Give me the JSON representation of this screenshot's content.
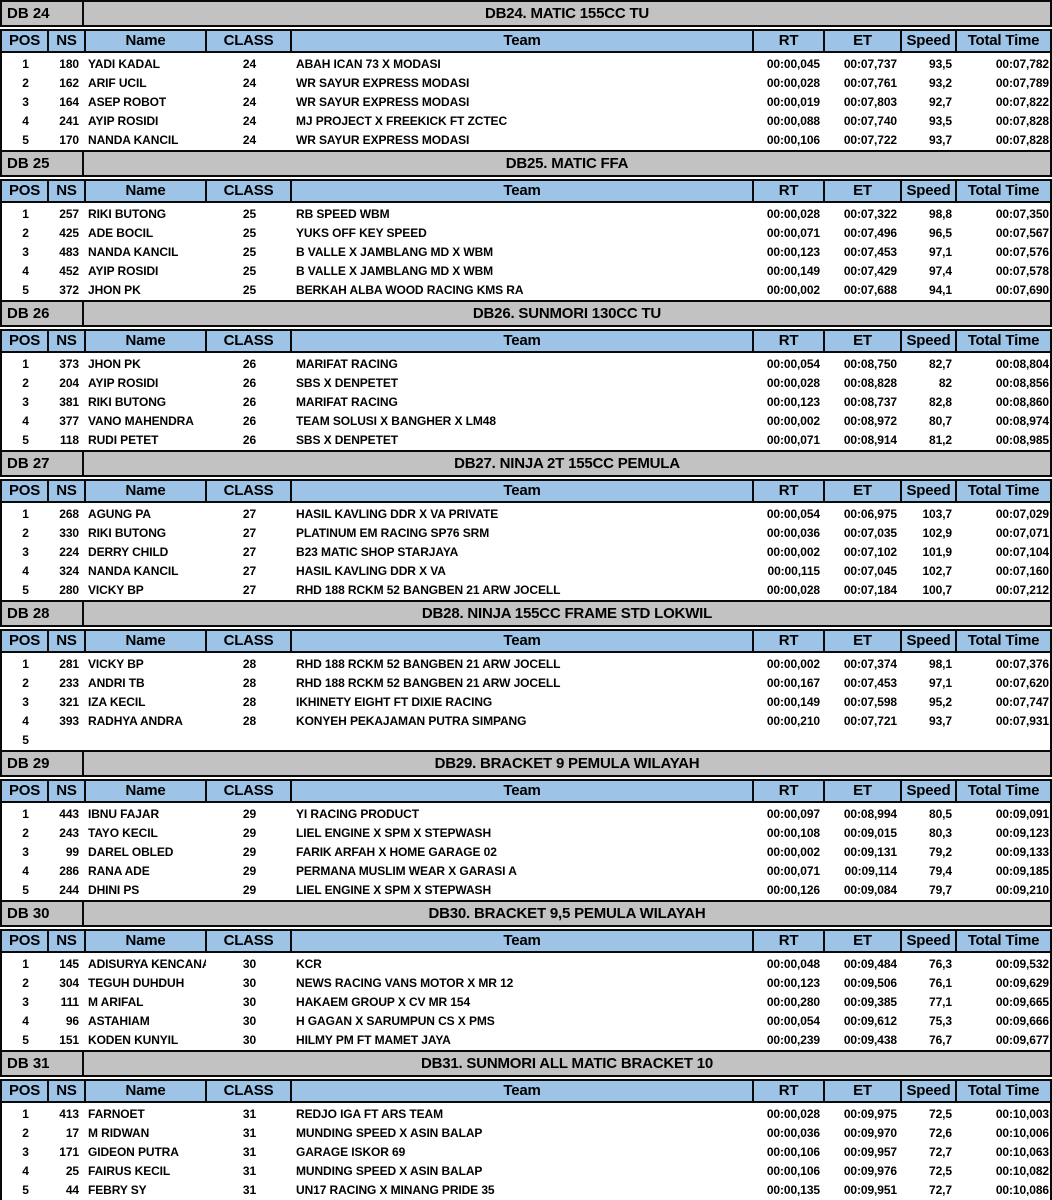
{
  "colors": {
    "title_bg": "#C2C2C2",
    "header_bg": "#9DC3E6",
    "border": "#0A0A0A",
    "row_bg": "#FFFFFF",
    "text": "#000000"
  },
  "columns": [
    "POS",
    "NS",
    "Name",
    "CLASS",
    "Team",
    "RT",
    "ET",
    "Speed",
    "Total Time"
  ],
  "sections": [
    {
      "code": "DB 24",
      "title": "DB24. MATIC 155CC TU",
      "rows": [
        {
          "pos": "1",
          "ns": "180",
          "name": "YADI KADAL",
          "class": "24",
          "team": "ABAH ICAN 73 X MODASI",
          "rt": "00:00,045",
          "et": "00:07,737",
          "speed": "93,5",
          "total_time": "00:07,782"
        },
        {
          "pos": "2",
          "ns": "162",
          "name": "ARIF UCIL",
          "class": "24",
          "team": "WR SAYUR EXPRESS MODASI",
          "rt": "00:00,028",
          "et": "00:07,761",
          "speed": "93,2",
          "total_time": "00:07,789"
        },
        {
          "pos": "3",
          "ns": "164",
          "name": "ASEP ROBOT",
          "class": "24",
          "team": "WR SAYUR EXPRESS MODASI",
          "rt": "00:00,019",
          "et": "00:07,803",
          "speed": "92,7",
          "total_time": "00:07,822"
        },
        {
          "pos": "4",
          "ns": "241",
          "name": "AYIP ROSIDI",
          "class": "24",
          "team": "MJ PROJECT X FREEKICK FT ZCTEC",
          "rt": "00:00,088",
          "et": "00:07,740",
          "speed": "93,5",
          "total_time": "00:07,828"
        },
        {
          "pos": "5",
          "ns": "170",
          "name": "NANDA KANCIL",
          "class": "24",
          "team": "WR SAYUR EXPRESS MODASI",
          "rt": "00:00,106",
          "et": "00:07,722",
          "speed": "93,7",
          "total_time": "00:07,828"
        }
      ]
    },
    {
      "code": "DB 25",
      "title": "DB25. MATIC FFA",
      "rows": [
        {
          "pos": "1",
          "ns": "257",
          "name": "RIKI BUTONG",
          "class": "25",
          "team": "RB SPEED WBM",
          "rt": "00:00,028",
          "et": "00:07,322",
          "speed": "98,8",
          "total_time": "00:07,350"
        },
        {
          "pos": "2",
          "ns": "425",
          "name": "ADE BOCIL",
          "class": "25",
          "team": "YUKS OFF KEY SPEED",
          "rt": "00:00,071",
          "et": "00:07,496",
          "speed": "96,5",
          "total_time": "00:07,567"
        },
        {
          "pos": "3",
          "ns": "483",
          "name": "NANDA KANCIL",
          "class": "25",
          "team": "B VALLE X JAMBLANG MD X WBM",
          "rt": "00:00,123",
          "et": "00:07,453",
          "speed": "97,1",
          "total_time": "00:07,576"
        },
        {
          "pos": "4",
          "ns": "452",
          "name": "AYIP ROSIDI",
          "class": "25",
          "team": "B VALLE X JAMBLANG MD X WBM",
          "rt": "00:00,149",
          "et": "00:07,429",
          "speed": "97,4",
          "total_time": "00:07,578"
        },
        {
          "pos": "5",
          "ns": "372",
          "name": "JHON PK",
          "class": "25",
          "team": "BERKAH ALBA WOOD RACING KMS RA",
          "rt": "00:00,002",
          "et": "00:07,688",
          "speed": "94,1",
          "total_time": "00:07,690"
        }
      ]
    },
    {
      "code": "DB 26",
      "title": "DB26. SUNMORI 130CC TU",
      "rows": [
        {
          "pos": "1",
          "ns": "373",
          "name": "JHON PK",
          "class": "26",
          "team": "MARIFAT RACING",
          "rt": "00:00,054",
          "et": "00:08,750",
          "speed": "82,7",
          "total_time": "00:08,804"
        },
        {
          "pos": "2",
          "ns": "204",
          "name": "AYIP ROSIDI",
          "class": "26",
          "team": "SBS X DENPETET",
          "rt": "00:00,028",
          "et": "00:08,828",
          "speed": "82",
          "total_time": "00:08,856"
        },
        {
          "pos": "3",
          "ns": "381",
          "name": "RIKI BUTONG",
          "class": "26",
          "team": "MARIFAT RACING",
          "rt": "00:00,123",
          "et": "00:08,737",
          "speed": "82,8",
          "total_time": "00:08,860"
        },
        {
          "pos": "4",
          "ns": "377",
          "name": "VANO MAHENDRA",
          "class": "26",
          "team": "TEAM SOLUSI X BANGHER X LM48",
          "rt": "00:00,002",
          "et": "00:08,972",
          "speed": "80,7",
          "total_time": "00:08,974"
        },
        {
          "pos": "5",
          "ns": "118",
          "name": "RUDI PETET",
          "class": "26",
          "team": "SBS X DENPETET",
          "rt": "00:00,071",
          "et": "00:08,914",
          "speed": "81,2",
          "total_time": "00:08,985"
        }
      ]
    },
    {
      "code": "DB 27",
      "title": "DB27. NINJA 2T 155CC PEMULA",
      "rows": [
        {
          "pos": "1",
          "ns": "268",
          "name": "AGUNG PA",
          "class": "27",
          "team": "HASIL KAVLING DDR X VA PRIVATE",
          "rt": "00:00,054",
          "et": "00:06,975",
          "speed": "103,7",
          "total_time": "00:07,029"
        },
        {
          "pos": "2",
          "ns": "330",
          "name": "RIKI BUTONG",
          "class": "27",
          "team": "PLATINUM EM RACING SP76 SRM",
          "rt": "00:00,036",
          "et": "00:07,035",
          "speed": "102,9",
          "total_time": "00:07,071"
        },
        {
          "pos": "3",
          "ns": "224",
          "name": "DERRY CHILD",
          "class": "27",
          "team": "B23 MATIC SHOP STARJAYA",
          "rt": "00:00,002",
          "et": "00:07,102",
          "speed": "101,9",
          "total_time": "00:07,104"
        },
        {
          "pos": "4",
          "ns": "324",
          "name": "NANDA KANCIL",
          "class": "27",
          "team": "HASIL KAVLING DDR X VA",
          "rt": "00:00,115",
          "et": "00:07,045",
          "speed": "102,7",
          "total_time": "00:07,160"
        },
        {
          "pos": "5",
          "ns": "280",
          "name": "VICKY BP",
          "class": "27",
          "team": "RHD 188 RCKM 52 BANGBEN 21 ARW JOCELL",
          "rt": "00:00,028",
          "et": "00:07,184",
          "speed": "100,7",
          "total_time": "00:07,212"
        }
      ]
    },
    {
      "code": "DB 28",
      "title": "DB28. NINJA 155CC FRAME STD LOKWIL",
      "rows": [
        {
          "pos": "1",
          "ns": "281",
          "name": "VICKY BP",
          "class": "28",
          "team": "RHD 188 RCKM 52 BANGBEN 21 ARW JOCELL",
          "rt": "00:00,002",
          "et": "00:07,374",
          "speed": "98,1",
          "total_time": "00:07,376"
        },
        {
          "pos": "2",
          "ns": "233",
          "name": "ANDRI TB",
          "class": "28",
          "team": "RHD 188 RCKM 52 BANGBEN 21 ARW JOCELL",
          "rt": "00:00,167",
          "et": "00:07,453",
          "speed": "97,1",
          "total_time": "00:07,620"
        },
        {
          "pos": "3",
          "ns": "321",
          "name": "IZA KECIL",
          "class": "28",
          "team": "IKHINETY EIGHT FT DIXIE RACING",
          "rt": "00:00,149",
          "et": "00:07,598",
          "speed": "95,2",
          "total_time": "00:07,747"
        },
        {
          "pos": "4",
          "ns": "393",
          "name": "RADHYA ANDRA",
          "class": "28",
          "team": "KONYEH PEKAJAMAN PUTRA SIMPANG",
          "rt": "00:00,210",
          "et": "00:07,721",
          "speed": "93,7",
          "total_time": "00:07,931"
        },
        {
          "pos": "5",
          "ns": "",
          "name": "",
          "class": "",
          "team": "",
          "rt": "",
          "et": "",
          "speed": "",
          "total_time": ""
        }
      ]
    },
    {
      "code": "DB 29",
      "title": "DB29. BRACKET 9 PEMULA WILAYAH",
      "rows": [
        {
          "pos": "1",
          "ns": "443",
          "name": "IBNU FAJAR",
          "class": "29",
          "team": "YI RACING PRODUCT",
          "rt": "00:00,097",
          "et": "00:08,994",
          "speed": "80,5",
          "total_time": "00:09,091"
        },
        {
          "pos": "2",
          "ns": "243",
          "name": "TAYO KECIL",
          "class": "29",
          "team": "LIEL ENGINE X SPM X STEPWASH",
          "rt": "00:00,108",
          "et": "00:09,015",
          "speed": "80,3",
          "total_time": "00:09,123"
        },
        {
          "pos": "3",
          "ns": "99",
          "name": "DAREL OBLED",
          "class": "29",
          "team": "FARIK ARFAH X HOME GARAGE 02",
          "rt": "00:00,002",
          "et": "00:09,131",
          "speed": "79,2",
          "total_time": "00:09,133"
        },
        {
          "pos": "4",
          "ns": "286",
          "name": "RANA ADE",
          "class": "29",
          "team": "PERMANA MUSLIM WEAR X GARASI A",
          "rt": "00:00,071",
          "et": "00:09,114",
          "speed": "79,4",
          "total_time": "00:09,185"
        },
        {
          "pos": "5",
          "ns": "244",
          "name": "DHINI PS",
          "class": "29",
          "team": "LIEL ENGINE X SPM X STEPWASH",
          "rt": "00:00,126",
          "et": "00:09,084",
          "speed": "79,7",
          "total_time": "00:09,210"
        }
      ]
    },
    {
      "code": "DB 30",
      "title": "DB30. BRACKET 9,5 PEMULA WILAYAH",
      "rows": [
        {
          "pos": "1",
          "ns": "145",
          "name": "ADISURYA KENCANA",
          "class": "30",
          "team": "KCR",
          "rt": "00:00,048",
          "et": "00:09,484",
          "speed": "76,3",
          "total_time": "00:09,532"
        },
        {
          "pos": "2",
          "ns": "304",
          "name": "TEGUH DUHDUH",
          "class": "30",
          "team": "NEWS RACING VANS MOTOR X MR 12",
          "rt": "00:00,123",
          "et": "00:09,506",
          "speed": "76,1",
          "total_time": "00:09,629"
        },
        {
          "pos": "3",
          "ns": "111",
          "name": "M ARIFAL",
          "class": "30",
          "team": "HAKAEM GROUP X CV MR 154",
          "rt": "00:00,280",
          "et": "00:09,385",
          "speed": "77,1",
          "total_time": "00:09,665"
        },
        {
          "pos": "4",
          "ns": "96",
          "name": "ASTAHIAM",
          "class": "30",
          "team": "H GAGAN X SARUMPUN CS X PMS",
          "rt": "00:00,054",
          "et": "00:09,612",
          "speed": "75,3",
          "total_time": "00:09,666"
        },
        {
          "pos": "5",
          "ns": "151",
          "name": "KODEN KUNYIL",
          "class": "30",
          "team": "HILMY PM FT MAMET JAYA",
          "rt": "00:00,239",
          "et": "00:09,438",
          "speed": "76,7",
          "total_time": "00:09,677"
        }
      ]
    },
    {
      "code": "DB 31",
      "title": "DB31. SUNMORI ALL MATIC BRACKET 10",
      "rows": [
        {
          "pos": "1",
          "ns": "413",
          "name": "FARNOET",
          "class": "31",
          "team": "REDJO IGA FT ARS TEAM",
          "rt": "00:00,028",
          "et": "00:09,975",
          "speed": "72,5",
          "total_time": "00:10,003"
        },
        {
          "pos": "2",
          "ns": "17",
          "name": "M RIDWAN",
          "class": "31",
          "team": "MUNDING SPEED X ASIN BALAP",
          "rt": "00:00,036",
          "et": "00:09,970",
          "speed": "72,6",
          "total_time": "00:10,006"
        },
        {
          "pos": "3",
          "ns": "171",
          "name": "GIDEON PUTRA",
          "class": "31",
          "team": "GARAGE ISKOR 69",
          "rt": "00:00,106",
          "et": "00:09,957",
          "speed": "72,7",
          "total_time": "00:10,063"
        },
        {
          "pos": "4",
          "ns": "25",
          "name": "FAIRUS KECIL",
          "class": "31",
          "team": "MUNDING SPEED X ASIN BALAP",
          "rt": "00:00,106",
          "et": "00:09,976",
          "speed": "72,5",
          "total_time": "00:10,082"
        },
        {
          "pos": "5",
          "ns": "44",
          "name": "FEBRY SY",
          "class": "31",
          "team": "UN17 RACING X MINANG PRIDE 35",
          "rt": "00:00,135",
          "et": "00:09,951",
          "speed": "72,7",
          "total_time": "00:10,086"
        }
      ]
    }
  ]
}
